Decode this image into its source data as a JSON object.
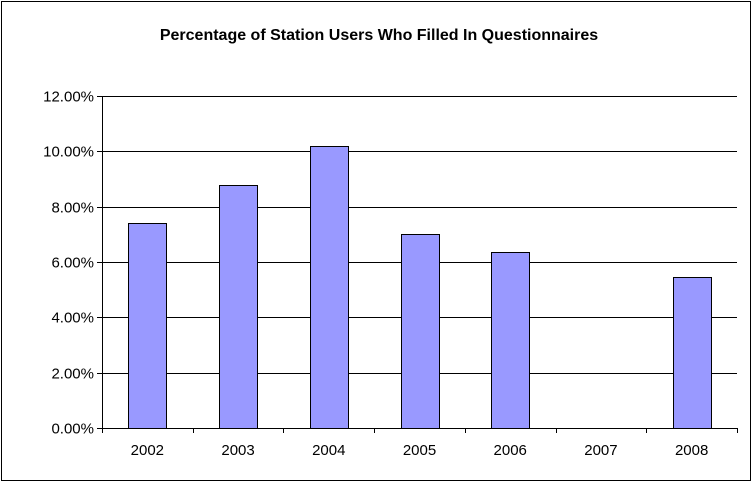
{
  "chart_data": {
    "type": "bar",
    "title": "Percentage of Station Users Who Filled In Questionnaires",
    "xlabel": "",
    "ylabel": "",
    "categories": [
      "2002",
      "2003",
      "2004",
      "2005",
      "2006",
      "2007",
      "2008"
    ],
    "values": [
      7.4,
      8.8,
      10.2,
      7.0,
      6.35,
      null,
      5.45
    ],
    "ylim": [
      0,
      12
    ],
    "yticks": [
      0,
      2,
      4,
      6,
      8,
      10,
      12
    ],
    "ytick_labels": [
      "0.00%",
      "2.00%",
      "4.00%",
      "6.00%",
      "8.00%",
      "10.00%",
      "12.00%"
    ],
    "grid": "horizontal",
    "legend": "none",
    "bar_color": "#9999ff",
    "bar_border_color": "#000000",
    "gridline_color": "#000000"
  }
}
